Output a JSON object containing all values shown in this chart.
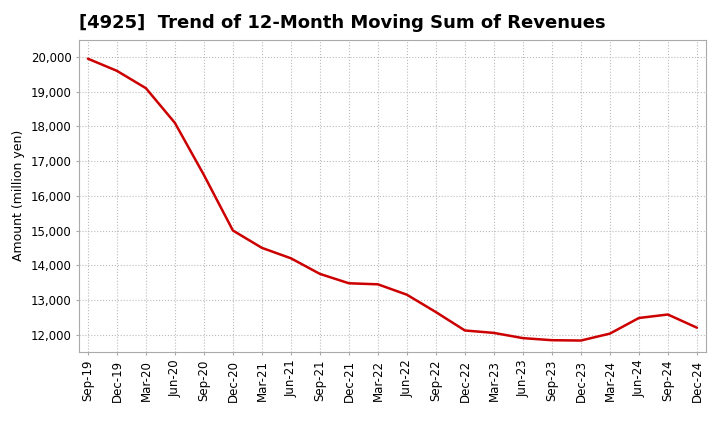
{
  "title": "[4925]  Trend of 12-Month Moving Sum of Revenues",
  "ylabel": "Amount (million yen)",
  "background_color": "#ffffff",
  "grid_color": "#bbbbbb",
  "line_color": "#cc0000",
  "line_width": 1.8,
  "x_labels": [
    "Sep-19",
    "Dec-19",
    "Mar-20",
    "Jun-20",
    "Sep-20",
    "Dec-20",
    "Mar-21",
    "Jun-21",
    "Sep-21",
    "Dec-21",
    "Mar-22",
    "Jun-22",
    "Sep-22",
    "Dec-22",
    "Mar-23",
    "Jun-23",
    "Sep-23",
    "Dec-23",
    "Mar-24",
    "Jun-24",
    "Sep-24",
    "Dec-24"
  ],
  "y_values": [
    19950,
    19600,
    19100,
    18100,
    16600,
    15000,
    14500,
    14200,
    13750,
    13480,
    13450,
    13150,
    12650,
    12120,
    12050,
    11900,
    11840,
    11830,
    12030,
    12480,
    12580,
    12200
  ],
  "ylim": [
    11500,
    20500
  ],
  "yticks": [
    12000,
    13000,
    14000,
    15000,
    16000,
    17000,
    18000,
    19000,
    20000
  ],
  "title_fontsize": 13,
  "axis_fontsize": 9,
  "tick_fontsize": 8.5
}
